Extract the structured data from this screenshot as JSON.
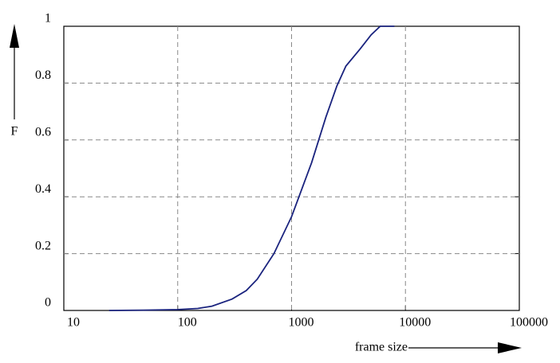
{
  "chart_data": {
    "type": "line",
    "xlabel": "frame size",
    "ylabel": "F",
    "xscale": "log",
    "grid": true,
    "xlim": [
      10,
      100000
    ],
    "xticks": [
      10,
      100,
      1000,
      10000,
      100000
    ],
    "ylim": [
      0,
      1
    ],
    "yticks": [
      0,
      0.2,
      0.4,
      0.6,
      0.8,
      1
    ],
    "x": [
      25,
      50,
      100,
      150,
      200,
      300,
      400,
      500,
      700,
      1000,
      1500,
      2000,
      2500,
      3000,
      4000,
      5000,
      6000,
      8000
    ],
    "series": [
      {
        "color": "#1a237e",
        "values": [
          0,
          0.001,
          0.003,
          0.007,
          0.015,
          0.04,
          0.07,
          0.11,
          0.2,
          0.33,
          0.52,
          0.68,
          0.79,
          0.86,
          0.92,
          0.97,
          1,
          1
        ]
      }
    ]
  }
}
